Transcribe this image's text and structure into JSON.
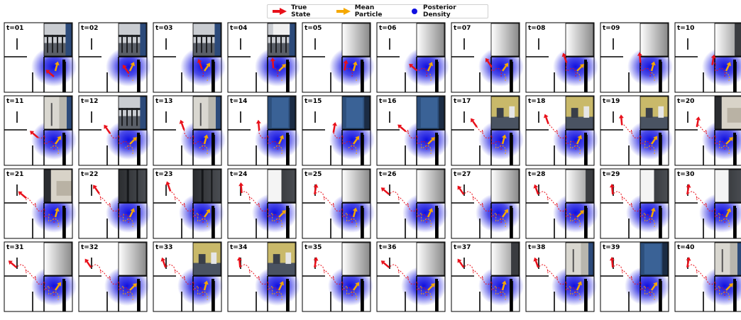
{
  "legend": {
    "true_state": "True State",
    "mean_particle": "Mean Particle",
    "posterior_density": "Posterior Density"
  },
  "colors": {
    "true_state": "#e8101a",
    "mean_particle": "#f5a800",
    "posterior_density": "#1010e0"
  },
  "frames": [
    {
      "label": "t=01",
      "view": "railing"
    },
    {
      "label": "t=02",
      "view": "railing"
    },
    {
      "label": "t=03",
      "view": "railing"
    },
    {
      "label": "t=04",
      "view": "railing-wall"
    },
    {
      "label": "t=05",
      "view": "wall"
    },
    {
      "label": "t=06",
      "view": "wall"
    },
    {
      "label": "t=07",
      "view": "wall"
    },
    {
      "label": "t=08",
      "view": "wall"
    },
    {
      "label": "t=09",
      "view": "wall"
    },
    {
      "label": "t=10",
      "view": "wall-dark"
    },
    {
      "label": "t=11",
      "view": "corridor"
    },
    {
      "label": "t=12",
      "view": "railing"
    },
    {
      "label": "t=13",
      "view": "corridor"
    },
    {
      "label": "t=14",
      "view": "blue-door"
    },
    {
      "label": "t=15",
      "view": "blue-door"
    },
    {
      "label": "t=16",
      "view": "blue-door"
    },
    {
      "label": "t=17",
      "view": "room-yellow"
    },
    {
      "label": "t=18",
      "view": "room-yellow"
    },
    {
      "label": "t=19",
      "view": "room-yellow"
    },
    {
      "label": "t=20",
      "view": "room-sofa"
    },
    {
      "label": "t=21",
      "view": "room-sofa"
    },
    {
      "label": "t=22",
      "view": "dark"
    },
    {
      "label": "t=23",
      "view": "dark"
    },
    {
      "label": "t=24",
      "view": "dark-wall"
    },
    {
      "label": "t=25",
      "view": "wall"
    },
    {
      "label": "t=26",
      "view": "wall"
    },
    {
      "label": "t=27",
      "view": "wall"
    },
    {
      "label": "t=28",
      "view": "wall-dark"
    },
    {
      "label": "t=29",
      "view": "dark-wall"
    },
    {
      "label": "t=30",
      "view": "dark-wall"
    },
    {
      "label": "t=31",
      "view": "wall"
    },
    {
      "label": "t=32",
      "view": "wall"
    },
    {
      "label": "t=33",
      "view": "room-yellow"
    },
    {
      "label": "t=34",
      "view": "room-yellow"
    },
    {
      "label": "t=35",
      "view": "wall"
    },
    {
      "label": "t=36",
      "view": "wall"
    },
    {
      "label": "t=37",
      "view": "wall-dark"
    },
    {
      "label": "t=38",
      "view": "corridor"
    },
    {
      "label": "t=39",
      "view": "blue-door"
    },
    {
      "label": "t=40",
      "view": "corridor"
    }
  ]
}
